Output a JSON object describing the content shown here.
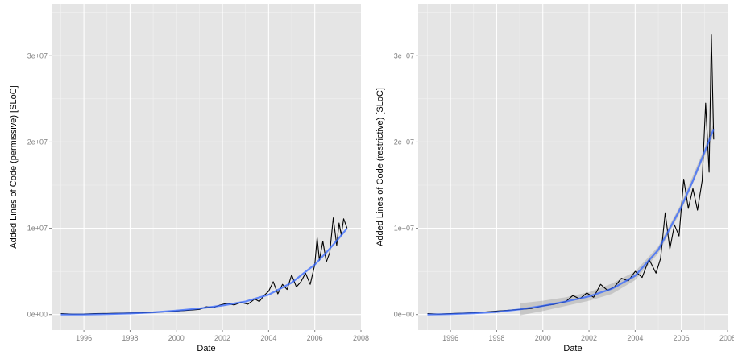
{
  "colors": {
    "panel_background": "#e5e5e5",
    "grid": "#ffffff",
    "raw_line": "#000000",
    "smooth_line": "#3366ff",
    "confidence_band": "#999999"
  },
  "chart_data": [
    {
      "type": "line",
      "xlabel": "Date",
      "ylabel": "Added Lines of Code (permissive) [SLoC]",
      "xlim": [
        1994.6,
        2008
      ],
      "ylim": [
        -1800000,
        36000000
      ],
      "x_ticks": [
        1996,
        1998,
        2000,
        2002,
        2004,
        2006,
        2008
      ],
      "x_tick_labels": [
        "1996",
        "1998",
        "2000",
        "2002",
        "2004",
        "2006",
        "2008"
      ],
      "y_ticks": [
        0,
        10000000,
        20000000,
        30000000
      ],
      "y_tick_labels": [
        "0e+00",
        "1e+07",
        "2e+07",
        "3e+07"
      ],
      "grid": true,
      "legend": "none",
      "series": [
        {
          "kind": "raw",
          "x": [
            1995.0,
            1995.5,
            1996.0,
            1996.5,
            1997.0,
            1997.5,
            1998.0,
            1998.5,
            1999.0,
            1999.5,
            2000.0,
            2000.5,
            2001.0,
            2001.3,
            2001.6,
            2001.9,
            2002.2,
            2002.5,
            2002.8,
            2003.1,
            2003.4,
            2003.6,
            2003.8,
            2004.0,
            2004.2,
            2004.4,
            2004.6,
            2004.8,
            2005.0,
            2005.2,
            2005.4,
            2005.6,
            2005.8,
            2006.0,
            2006.1,
            2006.2,
            2006.35,
            2006.5,
            2006.65,
            2006.8,
            2006.95,
            2007.05,
            2007.15,
            2007.25,
            2007.4
          ],
          "y": [
            100000,
            50000,
            60000,
            100000,
            120000,
            150000,
            180000,
            200000,
            250000,
            300000,
            400000,
            500000,
            600000,
            900000,
            800000,
            1100000,
            1300000,
            1100000,
            1400000,
            1200000,
            1800000,
            1500000,
            2200000,
            2700000,
            3800000,
            2400000,
            3500000,
            2900000,
            4600000,
            3200000,
            3800000,
            4800000,
            3500000,
            5800000,
            8900000,
            6300000,
            8500000,
            6100000,
            7200000,
            11200000,
            8000000,
            10600000,
            9200000,
            11100000,
            10000000
          ]
        },
        {
          "kind": "smooth",
          "x": [
            1995.0,
            1996.0,
            1997.0,
            1998.0,
            1999.0,
            2000.0,
            2001.0,
            2002.0,
            2003.0,
            2004.0,
            2005.0,
            2006.0,
            2006.5,
            2007.0,
            2007.4
          ],
          "y": [
            0,
            0,
            50000,
            120000,
            250000,
            450000,
            700000,
            1050000,
            1500000,
            2300000,
            3700000,
            5800000,
            7200000,
            8700000,
            10000000
          ]
        }
      ]
    },
    {
      "type": "line",
      "xlabel": "Date",
      "ylabel": "Added Lines of Code (restrictive) [SLoC]",
      "xlim": [
        1994.6,
        2008
      ],
      "ylim": [
        -1800000,
        36000000
      ],
      "x_ticks": [
        1996,
        1998,
        2000,
        2002,
        2004,
        2006,
        2008
      ],
      "x_tick_labels": [
        "1996",
        "1998",
        "2000",
        "2002",
        "2004",
        "2006",
        "2008"
      ],
      "y_ticks": [
        0,
        10000000,
        20000000,
        30000000
      ],
      "y_tick_labels": [
        "0e+00",
        "1e+07",
        "2e+07",
        "3e+07"
      ],
      "grid": true,
      "legend": "none",
      "series": [
        {
          "kind": "raw",
          "x": [
            1995.0,
            1995.5,
            1996.0,
            1996.5,
            1997.0,
            1997.5,
            1998.0,
            1998.5,
            1999.0,
            1999.5,
            2000.0,
            2000.5,
            2001.0,
            2001.3,
            2001.6,
            2001.9,
            2002.2,
            2002.5,
            2002.8,
            2003.1,
            2003.4,
            2003.7,
            2004.0,
            2004.3,
            2004.6,
            2004.9,
            2005.1,
            2005.3,
            2005.5,
            2005.7,
            2005.9,
            2006.1,
            2006.3,
            2006.5,
            2006.7,
            2006.9,
            2007.05,
            2007.2,
            2007.3,
            2007.4
          ],
          "y": [
            100000,
            50000,
            100000,
            150000,
            200000,
            300000,
            400000,
            500000,
            600000,
            700000,
            1000000,
            1200000,
            1500000,
            2200000,
            1800000,
            2500000,
            2000000,
            3500000,
            2800000,
            3200000,
            4200000,
            3900000,
            5000000,
            4300000,
            6400000,
            4800000,
            6500000,
            11800000,
            7600000,
            10400000,
            9100000,
            15700000,
            12300000,
            14600000,
            12100000,
            15500000,
            24500000,
            16500000,
            32500000,
            20300000
          ]
        },
        {
          "kind": "smooth",
          "x": [
            1995.0,
            1996.0,
            1997.0,
            1998.0,
            1999.0,
            2000.0,
            2001.0,
            2002.0,
            2003.0,
            2004.0,
            2005.0,
            2006.0,
            2006.5,
            2007.0,
            2007.4
          ],
          "y": [
            0,
            50000,
            150000,
            300000,
            600000,
            1000000,
            1500000,
            2100000,
            3000000,
            4500000,
            7500000,
            12500000,
            15500000,
            18800000,
            21500000
          ]
        },
        {
          "kind": "confidence_band",
          "x": [
            1999.0,
            2000.0,
            2001.0,
            2002.0,
            2003.0,
            2004.0,
            2005.0,
            2006.0,
            2007.0,
            2007.4
          ],
          "upper": [
            1300000,
            1600000,
            2000000,
            2600000,
            3600000,
            5000000,
            7900000,
            12900000,
            19300000,
            22200000
          ],
          "lower": [
            -100000,
            400000,
            1000000,
            1600000,
            2400000,
            4000000,
            7100000,
            12100000,
            18300000,
            20800000
          ]
        }
      ]
    }
  ]
}
